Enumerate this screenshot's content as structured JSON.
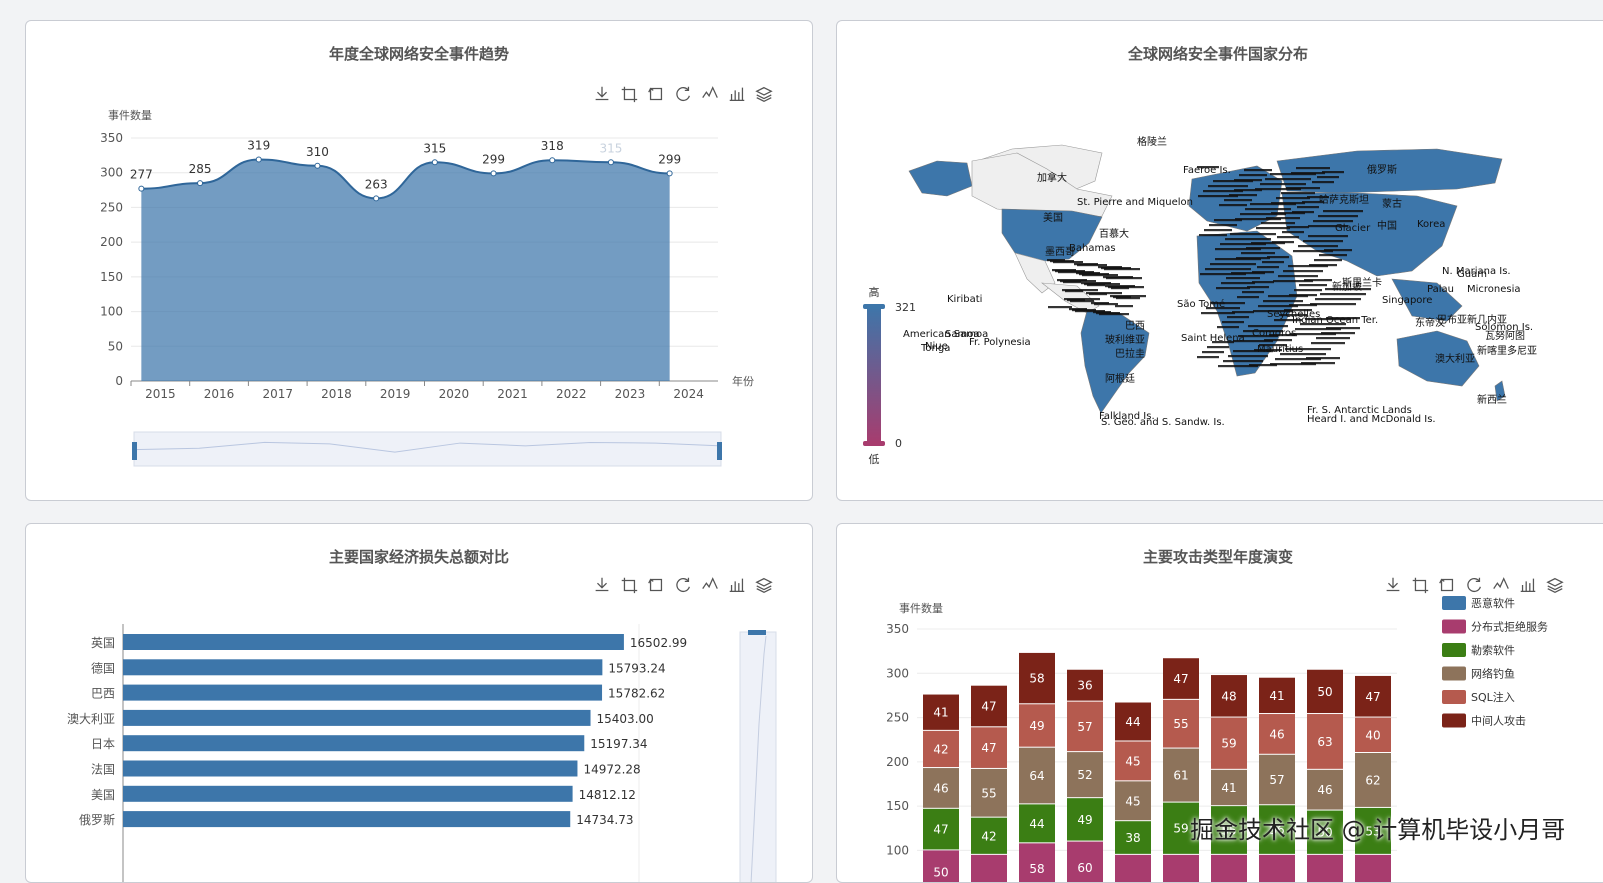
{
  "toolbox_icons": [
    "download-icon",
    "zoom-icon",
    "zoom-reset-icon",
    "restore-icon",
    "line-chart-icon",
    "bar-chart-icon",
    "stack-icon"
  ],
  "trend": {
    "title": "年度全球网络安全事件趋势",
    "chart_data": {
      "type": "area",
      "x": [
        "2015",
        "2016",
        "2017",
        "2018",
        "2019",
        "2020",
        "2021",
        "2022",
        "2023",
        "2024"
      ],
      "values": [
        277,
        285,
        319,
        310,
        263,
        315,
        299,
        318,
        315,
        299
      ],
      "ylabel": "事件数量",
      "xlabel": "年份",
      "ylim": [
        0,
        350
      ],
      "yticks": [
        0,
        50,
        100,
        150,
        200,
        250,
        300,
        350
      ],
      "grid": true,
      "color": "#3d76aa"
    }
  },
  "map": {
    "title": "全球网络安全事件国家分布",
    "visualmap": {
      "high_label": "高",
      "low_label": "低",
      "max": "321",
      "min": "0",
      "high_color": "#3d76aa",
      "low_color": "#a83c6e"
    },
    "labels": [
      "格陵兰",
      "加拿大",
      "St. Pierre and Miquelon",
      "美国",
      "百慕大",
      "Bahamas",
      "墨西哥",
      "Kiribati",
      "American Samoa",
      "Samoa",
      "Niue",
      "Fr. Polynesia",
      "Tonga",
      "巴西",
      "玻利维亚",
      "巴拉圭",
      "阿根廷",
      "Falkland Is.",
      "S. Geo. and S. Sandw. Is.",
      "Saint Helena",
      "São Tomé",
      "Faeroe Is.",
      "俄罗斯",
      "哈萨克斯坦",
      "蒙古",
      "中国",
      "Korea",
      "Glacier",
      "新加坡",
      "Singapore",
      "Guam",
      "N. Mariana Is.",
      "Palau",
      "Micronesia",
      "Solomon Is.",
      "瓦努阿图",
      "新喀里多尼亚",
      "澳大利亚",
      "新西兰",
      "Seychelles",
      "Comoros",
      "Mauritius",
      "Indian Ocean Ter.",
      "Fr. S. Antarctic Lands",
      "Heard I. and McDonald Is.",
      "巴布亚新几内亚",
      "东帝汶",
      "斯里兰卡"
    ]
  },
  "loss": {
    "title": "主要国家经济损失总额对比",
    "chart_data": {
      "type": "bar",
      "orientation": "horizontal",
      "categories": [
        "英国",
        "德国",
        "巴西",
        "澳大利亚",
        "日本",
        "法国",
        "美国",
        "俄罗斯"
      ],
      "values": [
        16502.99,
        15793.24,
        15782.62,
        15403.0,
        15197.34,
        14972.28,
        14812.12,
        14734.73
      ],
      "value_labels": [
        "16502.99",
        "15793.24",
        "15782.62",
        "15403.00",
        "15197.34",
        "14972.28",
        "14812.12",
        "14734.73"
      ],
      "xlim": [
        0,
        17000
      ],
      "color": "#3d76aa"
    }
  },
  "attacks": {
    "title": "主要攻击类型年度演变",
    "chart_data": {
      "type": "bar",
      "stacked": true,
      "ylabel": "事件数量",
      "ylim": [
        0,
        350
      ],
      "yticks": [
        100,
        150,
        200,
        250,
        300,
        350
      ],
      "categories": [
        "2015",
        "2016",
        "2017",
        "2018",
        "2019",
        "2020",
        "2021",
        "2022",
        "2023",
        "2024"
      ],
      "series": [
        {
          "name": "恶意软件",
          "color": "#3d76aa",
          "values": [
            null,
            null,
            null,
            null,
            null,
            null,
            null,
            null,
            null,
            null
          ]
        },
        {
          "name": "分布式拒绝服务",
          "color": "#a83c6e",
          "values": [
            50,
            null,
            58,
            60,
            null,
            null,
            null,
            null,
            null,
            null
          ]
        },
        {
          "name": "勒索软件",
          "color": "#3b7e14",
          "values": [
            47,
            42,
            44,
            49,
            38,
            59,
            55,
            56,
            50,
            53
          ]
        },
        {
          "name": "网络钓鱼",
          "color": "#8d735b",
          "values": [
            46,
            55,
            64,
            52,
            45,
            61,
            41,
            57,
            46,
            62
          ]
        },
        {
          "name": "SQL注入",
          "color": "#b55a4e",
          "values": [
            42,
            47,
            49,
            57,
            45,
            55,
            59,
            46,
            63,
            40
          ]
        },
        {
          "name": "中间人攻击",
          "color": "#7b2318",
          "values": [
            41,
            47,
            58,
            36,
            44,
            47,
            48,
            41,
            50,
            47
          ]
        }
      ]
    }
  },
  "watermark": "掘金技术社区 @ 计算机毕设小月哥"
}
